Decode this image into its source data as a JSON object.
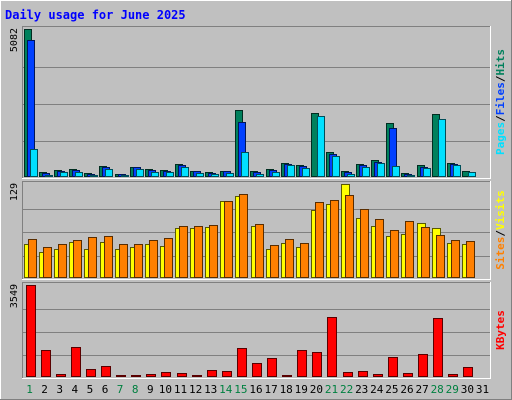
{
  "chart_data": {
    "type": "bar",
    "title": "Daily usage for June 2025",
    "categories": [
      "1",
      "2",
      "3",
      "4",
      "5",
      "6",
      "7",
      "8",
      "9",
      "10",
      "11",
      "12",
      "13",
      "14",
      "15",
      "16",
      "17",
      "18",
      "19",
      "20",
      "21",
      "22",
      "23",
      "24",
      "25",
      "26",
      "27",
      "28",
      "29",
      "30",
      "31"
    ],
    "weekend_days": [
      "1",
      "7",
      "8",
      "14",
      "15",
      "21",
      "22",
      "28",
      "29"
    ],
    "panels": [
      {
        "name": "hits-files-pages",
        "ymax_label": "5082",
        "ymax": 5082,
        "right_label": [
          "Pages",
          "Files",
          "Hits"
        ],
        "series": [
          {
            "name": "Hits",
            "color": "#00805c",
            "values": [
              5082,
              160,
              250,
              260,
              130,
              370,
              110,
              360,
              260,
              250,
              450,
              220,
              180,
              220,
              2300,
              190,
              260,
              480,
              420,
              2200,
              860,
              210,
              460,
              570,
              1860,
              140,
              400,
              2180,
              490,
              190,
              0
            ]
          },
          {
            "name": "Files",
            "color": "#0040ff",
            "values": [
              4700,
              130,
              220,
              230,
              100,
              340,
              90,
              330,
              230,
              220,
              420,
              190,
              150,
              190,
              1880,
              160,
              230,
              440,
              380,
              0,
              790,
              180,
              420,
              530,
              1680,
              110,
              360,
              0,
              460,
              0,
              0
            ]
          },
          {
            "name": "Pages",
            "color": "#00e0ff",
            "values": [
              950,
              80,
              160,
              170,
              60,
              280,
              50,
              270,
              170,
              160,
              360,
              130,
              90,
              130,
              850,
              100,
              170,
              400,
              300,
              2100,
              720,
              120,
              360,
              470,
              390,
              80,
              300,
              1980,
              420,
              160,
              0
            ]
          }
        ]
      },
      {
        "name": "visits-sites",
        "ymax_label": "129",
        "ymax": 129,
        "right_label": [
          "Sites",
          "Visits"
        ],
        "series": [
          {
            "name": "Visits",
            "color": "#ffff00",
            "values": [
              47,
              36,
              40,
              50,
              40,
              50,
              40,
              42,
              46,
              44,
              68,
              68,
              70,
              106,
              112,
              72,
              40,
              48,
              42,
              93,
              102,
              129,
              82,
              72,
              57,
              61,
              76,
              68,
              48,
              46,
              0
            ]
          },
          {
            "name": "Sites",
            "color": "#ff8000",
            "values": [
              54,
              43,
              47,
              52,
              56,
              58,
              46,
              46,
              52,
              55,
              72,
              71,
              73,
              106,
              115,
              74,
              45,
              54,
              48,
              104,
              107,
              114,
              95,
              81,
              66,
              78,
              70,
              59,
              52,
              51,
              0
            ]
          }
        ]
      },
      {
        "name": "kbytes",
        "ymax_label": "3549",
        "ymax": 3549,
        "right_label": [
          "KBytes"
        ],
        "series": [
          {
            "name": "KBytes",
            "color": "#ff0000",
            "values": [
              3549,
              1060,
              130,
              1140,
              300,
              420,
              80,
              60,
              110,
              180,
              150,
              80,
              260,
              230,
              1120,
              540,
              740,
              90,
              1060,
              980,
              2330,
              190,
              220,
              120,
              790,
              150,
              870,
              2290,
              130,
              400,
              0
            ]
          }
        ]
      }
    ],
    "colors": {
      "background": "#c0c0c0",
      "frame_light": "#ffffff",
      "frame_dark": "#808080",
      "title_text": "#0000ff",
      "axis_text": "#000000",
      "weekend_text": "#008040",
      "separator": "#000000"
    }
  }
}
